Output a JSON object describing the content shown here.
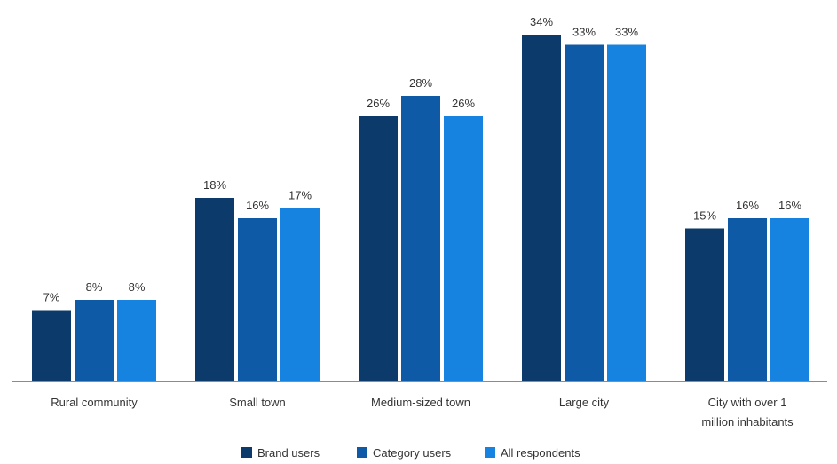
{
  "chart_data": {
    "type": "bar",
    "title": "",
    "xlabel": "",
    "ylabel": "",
    "ylim": [
      0,
      36
    ],
    "grid": false,
    "legend_position": "bottom-center",
    "categories": [
      [
        "Rural community"
      ],
      [
        "Small town"
      ],
      [
        "Medium-sized town"
      ],
      [
        "Large city"
      ],
      [
        "City with over 1",
        "million inhabitants"
      ]
    ],
    "series": [
      {
        "name": "Brand users",
        "color": "#0b3a6b",
        "values": [
          7,
          18,
          26,
          34,
          15
        ],
        "labels": [
          "7%",
          "18%",
          "26%",
          "34%",
          "15%"
        ]
      },
      {
        "name": "Category users",
        "color": "#0f5aa6",
        "values": [
          8,
          16,
          28,
          33,
          16
        ],
        "labels": [
          "8%",
          "16%",
          "28%",
          "33%",
          "16%"
        ]
      },
      {
        "name": "All respondents",
        "color": "#1683e0",
        "values": [
          8,
          17,
          26,
          33,
          16
        ],
        "labels": [
          "8%",
          "17%",
          "26%",
          "33%",
          "16%"
        ]
      }
    ]
  }
}
